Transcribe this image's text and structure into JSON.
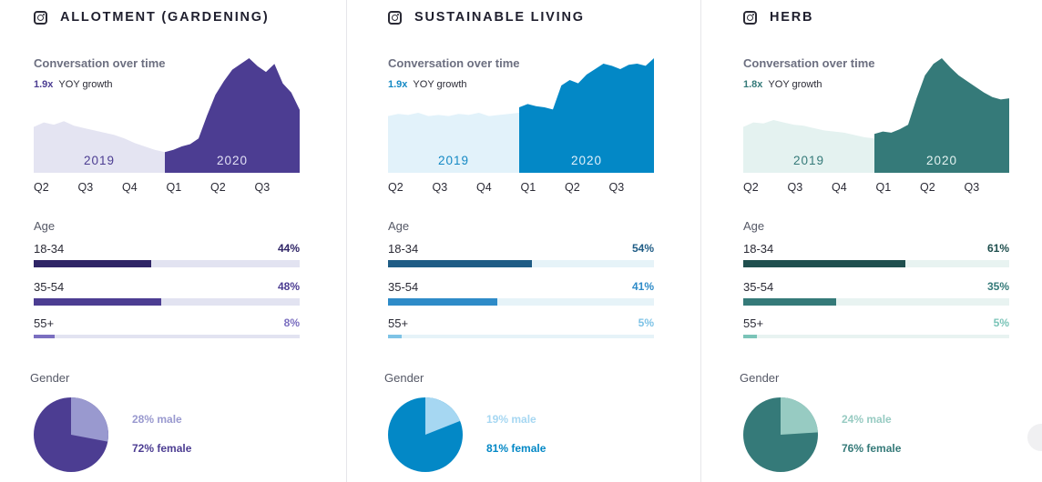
{
  "chart_data": [
    {
      "type": "area",
      "topic": "ALLOTMENT (GARDENING)",
      "platform_icon": "instagram-icon",
      "title": "Conversation over time",
      "yoy_multiplier": "1.9x",
      "yoy_label": "YOY growth",
      "period_labels": [
        "2019",
        "2020"
      ],
      "quarters": [
        "Q2",
        "Q3",
        "Q4",
        "Q1",
        "Q2",
        "Q3"
      ],
      "series_2019": [
        40,
        44,
        42,
        45,
        41,
        39,
        37,
        35,
        33,
        30,
        26,
        23,
        20,
        18
      ],
      "series_2020": [
        18,
        20,
        23,
        25,
        30,
        50,
        68,
        80,
        90,
        95,
        100,
        93,
        88,
        95,
        78,
        70,
        55
      ],
      "colors": {
        "dark": "#4c3d92",
        "light": "#e4e4f2",
        "track": "#e2e3f1",
        "text": "#4c3d92",
        "male_color": "#9999cf",
        "label_2019": "#4c3d92",
        "label_2020": "#e2e0f5"
      },
      "age_title": "Age",
      "age": [
        {
          "label": "18-34",
          "pct_text": "44%",
          "value": 44,
          "color": "#2f2566"
        },
        {
          "label": "35-54",
          "pct_text": "48%",
          "value": 48,
          "color": "#4c3d92"
        },
        {
          "label": "55+",
          "pct_text": "8%",
          "value": 8,
          "color": "#7b6fc0"
        }
      ],
      "gender_title": "Gender",
      "male_pct": 28,
      "male_label": "28% male",
      "female_pct": 72,
      "female_label": "72% female"
    },
    {
      "type": "area",
      "topic": "SUSTAINABLE LIVING",
      "platform_icon": "instagram-icon",
      "title": "Conversation over time",
      "yoy_multiplier": "1.9x",
      "yoy_label": "YOY growth",
      "period_labels": [
        "2019",
        "2020"
      ],
      "quarters": [
        "Q2",
        "Q3",
        "Q4",
        "Q1",
        "Q2",
        "Q3"
      ],
      "series_2019": [
        52,
        54,
        53,
        55,
        52,
        53,
        52,
        54,
        53,
        55,
        52,
        53,
        54,
        55
      ],
      "series_2020": [
        60,
        63,
        61,
        60,
        58,
        80,
        85,
        82,
        90,
        95,
        100,
        98,
        95,
        99,
        100,
        98,
        105
      ],
      "colors": {
        "dark": "#0388c6",
        "light": "#e2f2fa",
        "track": "#e6f3f8",
        "text": "#1489c4",
        "male_color": "#a6d7f2",
        "label_2019": "#1489c4",
        "label_2020": "#e1f1fb"
      },
      "age_title": "Age",
      "age": [
        {
          "label": "18-34",
          "pct_text": "54%",
          "value": 54,
          "color": "#1f5c85"
        },
        {
          "label": "35-54",
          "pct_text": "41%",
          "value": 41,
          "color": "#2e8bc8"
        },
        {
          "label": "55+",
          "pct_text": "5%",
          "value": 5,
          "color": "#7ec3e6"
        }
      ],
      "gender_title": "Gender",
      "male_pct": 19,
      "male_label": "19% male",
      "female_pct": 81,
      "female_label": "81% female"
    },
    {
      "type": "area",
      "topic": "HERB",
      "platform_icon": "instagram-icon",
      "title": "Conversation over time",
      "yoy_multiplier": "1.8x",
      "yoy_label": "YOY growth",
      "period_labels": [
        "2019",
        "2020"
      ],
      "quarters": [
        "Q2",
        "Q3",
        "Q4",
        "Q1",
        "Q2",
        "Q3"
      ],
      "series_2019": [
        40,
        44,
        43,
        46,
        44,
        42,
        41,
        39,
        37,
        36,
        35,
        33,
        31,
        30
      ],
      "series_2020": [
        34,
        36,
        35,
        38,
        42,
        65,
        85,
        95,
        100,
        92,
        85,
        80,
        75,
        70,
        66,
        64,
        65
      ],
      "colors": {
        "dark": "#357a79",
        "light": "#e4f2f0",
        "track": "#e8f3f1",
        "text": "#357a79",
        "male_color": "#97cbc2",
        "label_2019": "#357a79",
        "label_2020": "#e4f3f1"
      },
      "age_title": "Age",
      "age": [
        {
          "label": "18-34",
          "pct_text": "61%",
          "value": 61,
          "color": "#1f4f4e"
        },
        {
          "label": "35-54",
          "pct_text": "35%",
          "value": 35,
          "color": "#357a79"
        },
        {
          "label": "55+",
          "pct_text": "5%",
          "value": 5,
          "color": "#7bc4b8"
        }
      ],
      "gender_title": "Gender",
      "male_pct": 24,
      "male_label": "24% male",
      "female_pct": 76,
      "female_label": "76% female"
    }
  ]
}
